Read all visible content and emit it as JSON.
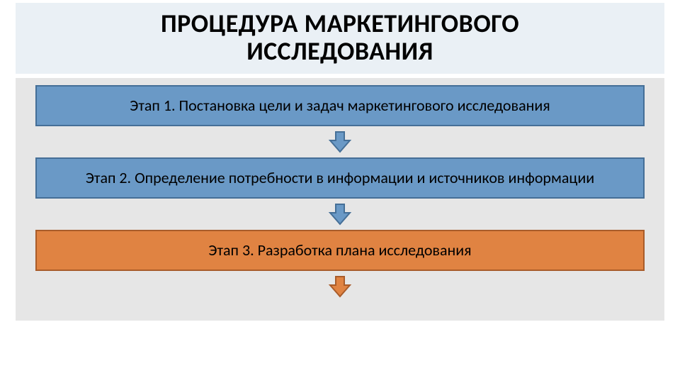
{
  "type": "flowchart",
  "background_color": "#ffffff",
  "title_band_bg": "#eaf0f5",
  "body_band_bg": "#e6e6e6",
  "title": "ПРОЦЕДУРА МАРКЕТИНГОВОГО\nИССЛЕДОВАНИЯ",
  "title_fontsize": 36,
  "title_fontweight": 700,
  "title_color": "#000000",
  "step_fontsize": 22,
  "step_text_color": "#000000",
  "steps": [
    {
      "label": "Этап 1. Постановка цели и задач маркетингового исследования",
      "fill": "#6a99c6",
      "border": "#456f97",
      "arrow_fill": "#6a99c6",
      "arrow_border": "#456f97"
    },
    {
      "label": "Этап 2. Определение потребности в информации и источников информации",
      "fill": "#6a99c6",
      "border": "#456f97",
      "arrow_fill": "#6a99c6",
      "arrow_border": "#456f97"
    },
    {
      "label": "Этап 3.  Разработка плана исследования",
      "fill": "#e08342",
      "border": "#a95c2a",
      "arrow_fill": "#e08342",
      "arrow_border": "#a95c2a"
    }
  ]
}
